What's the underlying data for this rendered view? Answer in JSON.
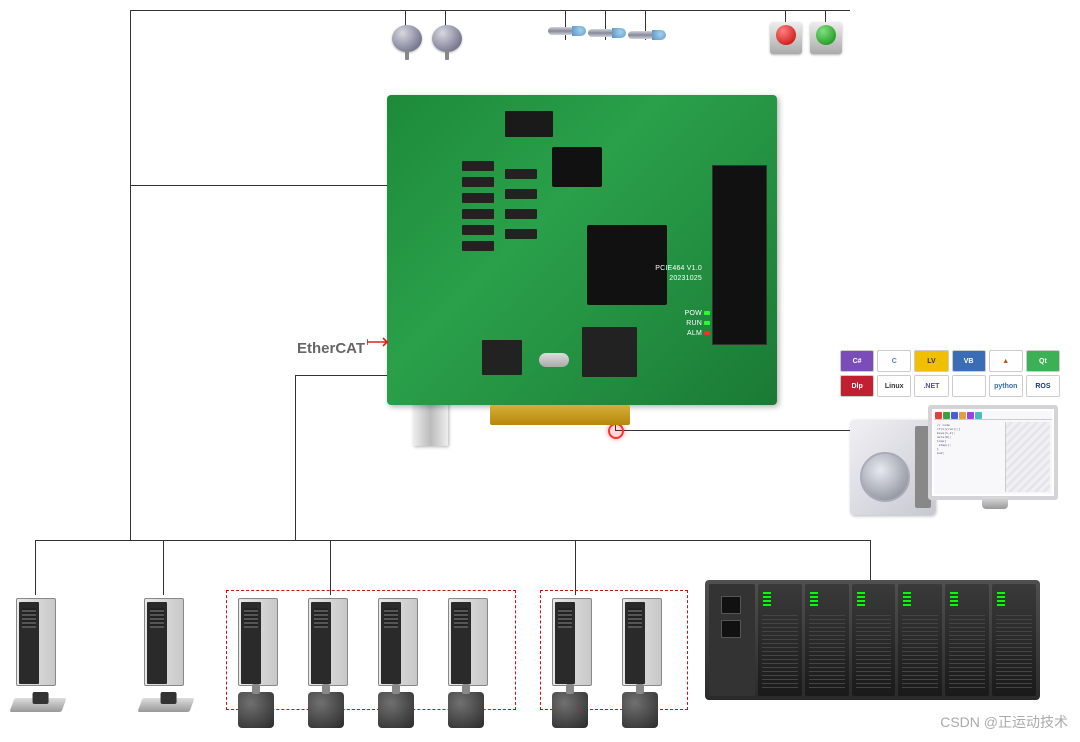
{
  "diagram": {
    "type": "connectivity-diagram",
    "background_color": "#ffffff",
    "line_color": "#333333"
  },
  "pcb": {
    "board_color": "#2aa04a",
    "silk_model": "PCIE464 V1.0",
    "silk_date": "20231025",
    "leds": {
      "POW": "#2aff2a",
      "RUN": "#2aff2a",
      "ALM": "#ff2a2a"
    },
    "marker_color": "#ff3030"
  },
  "protocol_label": {
    "text": "EtherCAT",
    "accent_color": "#e02020"
  },
  "top_peripherals": {
    "disc_sensors": 2,
    "prox_sensors": 3,
    "buttons": [
      {
        "color": "red",
        "hex": "#c00000"
      },
      {
        "color": "green",
        "hex": "#0a8a0a"
      }
    ]
  },
  "bottom_groups": [
    {
      "name": "linear-axes",
      "drives": 2,
      "actuator": "linear",
      "boxed": false
    },
    {
      "name": "rotary-set-1",
      "drives": 4,
      "actuator": "motor",
      "boxed": true
    },
    {
      "name": "rotary-set-2",
      "drives": 2,
      "actuator": "motor",
      "boxed": true
    }
  ],
  "dashed_box_color": "#d01010",
  "io_rack": {
    "modules": 6,
    "head_ports": 2,
    "body_color": "#2a2a2a",
    "led_color": "#00ff00"
  },
  "software_tiles": [
    {
      "label": "C#",
      "bg": "#7a4db8",
      "fg": "#ffffff"
    },
    {
      "label": "C",
      "bg": "#ffffff",
      "fg": "#5080c0"
    },
    {
      "label": "LV",
      "bg": "#f0c000",
      "fg": "#333333"
    },
    {
      "label": "VB",
      "bg": "#3a6db5",
      "fg": "#ffffff"
    },
    {
      "label": "▲",
      "bg": "#ffffff",
      "fg": "#c05010"
    },
    {
      "label": "Qt",
      "bg": "#3cb055",
      "fg": "#ffffff"
    },
    {
      "label": "Dlp",
      "bg": "#c02030",
      "fg": "#ffffff"
    },
    {
      "label": "Linux",
      "bg": "#ffffff",
      "fg": "#333333"
    },
    {
      "label": ".NET",
      "bg": "#ffffff",
      "fg": "#5050a0"
    },
    {
      "label": "",
      "bg": "#ffffff",
      "fg": "#888888"
    },
    {
      "label": "python",
      "bg": "#ffffff",
      "fg": "#3a6da0"
    },
    {
      "label": "ROS",
      "bg": "#ffffff",
      "fg": "#1a3a6a"
    }
  ],
  "monitor_toolbar_colors": [
    "#e04040",
    "#40a040",
    "#4060e0",
    "#e0a040",
    "#a040e0",
    "#40c0c0"
  ],
  "watermark": "CSDN @正运动技术"
}
